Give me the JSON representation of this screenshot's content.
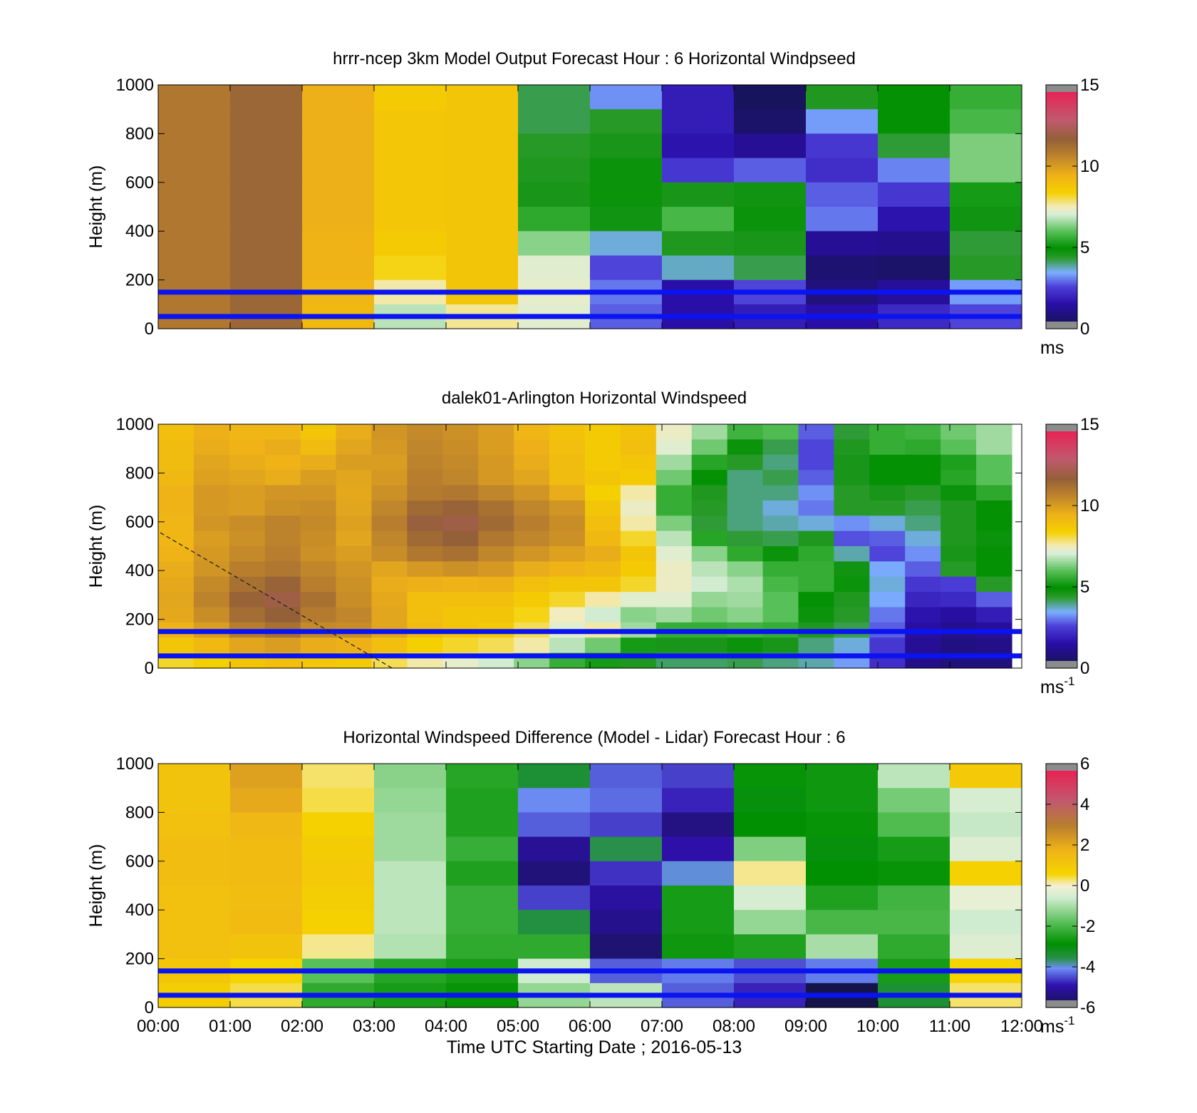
{
  "chart_data": [
    {
      "type": "heatmap",
      "title": "hrrr-ncep 3km Model Output   Forecast Hour : 6 Horizontal Windpseed",
      "ylabel": "Height (m)",
      "xlabel": "",
      "ylim": [
        0,
        1000
      ],
      "yticks": [
        "0",
        "200",
        "400",
        "600",
        "800",
        "1000"
      ],
      "x_columns": 12,
      "x_range_hours": [
        0,
        12
      ],
      "colorbar": {
        "min": 0,
        "max": 15,
        "ticks": [
          "0",
          "5",
          "10",
          "15"
        ],
        "unit": "ms",
        "palette": "speed"
      },
      "reference_lines_m": [
        150,
        50
      ],
      "values": [
        [
          11,
          11.5,
          9.5,
          8.6,
          8.8,
          4.2,
          3.2,
          1.8,
          0.3,
          4.5,
          5,
          5.6
        ],
        [
          11,
          11.5,
          9.5,
          8.7,
          8.8,
          4.2,
          4.4,
          1.8,
          0.5,
          3.3,
          5,
          5.8
        ],
        [
          11,
          11.5,
          9.5,
          8.7,
          8.8,
          4.4,
          4.6,
          1.6,
          1.2,
          2.4,
          4.3,
          6.3
        ],
        [
          11,
          11.5,
          9.5,
          8.7,
          8.8,
          4.5,
          4.8,
          2.4,
          2.8,
          2.2,
          3.1,
          6.3
        ],
        [
          11,
          11.5,
          9.5,
          8.7,
          8.8,
          4.6,
          4.8,
          4.6,
          4.7,
          2.8,
          2.4,
          5.2
        ],
        [
          11,
          11.5,
          9.5,
          8.7,
          8.8,
          5.5,
          4.7,
          5.8,
          4.8,
          3,
          1.6,
          4.7
        ],
        [
          11,
          11.5,
          9.4,
          8.6,
          8.8,
          6.4,
          3.6,
          4.5,
          4.6,
          1.2,
          1.1,
          4.3
        ],
        [
          11,
          11.5,
          9.4,
          8.3,
          8.8,
          7.2,
          2.6,
          3.7,
          4.2,
          0.6,
          0.5,
          4.4
        ],
        [
          11,
          11.5,
          9.3,
          7.6,
          8.8,
          7.3,
          3,
          1.5,
          2.6,
          0.8,
          1.3,
          3.3
        ],
        [
          11,
          11.5,
          9.2,
          6.8,
          7.7,
          7.2,
          2.8,
          1.5,
          1.8,
          1.5,
          2.1,
          2.6
        ]
      ]
    },
    {
      "type": "heatmap",
      "title": "dalek01-Arlington  Horizontal Windspeed",
      "ylabel": "Height (m)",
      "xlabel": "",
      "ylim": [
        0,
        1000
      ],
      "yticks": [
        "0",
        "200",
        "400",
        "600",
        "800",
        "1000"
      ],
      "x_columns": 24,
      "x_range_hours": [
        0,
        12
      ],
      "colorbar": {
        "min": 0,
        "max": 15,
        "ticks": [
          "0",
          "5",
          "10",
          "15"
        ],
        "unit": "ms-1",
        "palette": "speed"
      },
      "reference_lines_m": [
        150,
        50
      ],
      "values": [
        [
          9,
          9.5,
          9.3,
          9.3,
          8.8,
          9.6,
          10.2,
          10.5,
          10.3,
          10,
          9.3,
          8.9,
          8.6,
          8.9,
          7.4,
          6.6,
          5.7,
          5.9,
          2.8,
          4.3,
          5.6,
          5.7,
          6.2,
          6.6
        ],
        [
          9.1,
          9.6,
          9.4,
          9.6,
          9.1,
          9.8,
          10.1,
          10.6,
          10.4,
          10,
          9.5,
          9,
          8.6,
          9,
          7.2,
          6.2,
          4.8,
          4.2,
          2.6,
          4.5,
          5.6,
          5.5,
          6,
          6.6
        ],
        [
          9.1,
          9.8,
          9.6,
          9.4,
          9.6,
          10,
          10,
          10.7,
          10.5,
          10.1,
          9.6,
          9.1,
          8.6,
          8.8,
          6.6,
          5.4,
          4.4,
          4,
          2.6,
          4.6,
          5,
          5,
          5.3,
          6
        ],
        [
          9.2,
          9.9,
          9.8,
          9.6,
          10,
          9.8,
          10.1,
          10.8,
          10.6,
          10.1,
          9.8,
          9.1,
          8.8,
          8.6,
          6.2,
          5,
          4,
          4.2,
          2.8,
          4.6,
          5,
          5,
          5.4,
          6
        ],
        [
          9.4,
          10.1,
          10,
          10.2,
          10.2,
          9.7,
          10.3,
          10.9,
          11,
          10.6,
          10.2,
          9.6,
          8.4,
          7.6,
          5.6,
          4.5,
          4,
          4,
          3.2,
          4.4,
          4.6,
          4.4,
          4.8,
          5.5
        ],
        [
          9.4,
          10.1,
          10,
          10.3,
          10.4,
          9.8,
          10.6,
          11.4,
          11.6,
          11.2,
          10.6,
          10.2,
          8.8,
          7.4,
          5.6,
          4.4,
          4,
          3.6,
          3,
          4.4,
          4.4,
          4.2,
          4.5,
          5
        ],
        [
          9.3,
          10.2,
          10.4,
          10.7,
          10.5,
          9.9,
          10.8,
          11.8,
          12,
          11.4,
          10.8,
          10.4,
          9,
          7.6,
          6.3,
          4.3,
          4,
          3.8,
          3.6,
          3.2,
          3.6,
          4,
          4.5,
          5
        ],
        [
          9.3,
          10,
          10.3,
          10.7,
          10.4,
          9.8,
          10.6,
          11.4,
          11.7,
          11,
          10.6,
          10.3,
          9.2,
          8.2,
          6.8,
          5.4,
          4.3,
          4.2,
          4.5,
          2.7,
          2.8,
          3.6,
          4.5,
          4.8
        ],
        [
          9.4,
          10.1,
          10.5,
          10.8,
          10.3,
          10,
          10.4,
          11,
          11.2,
          10.6,
          10.2,
          9.9,
          9.6,
          8.8,
          7.2,
          6.4,
          5.5,
          4.8,
          5.5,
          3.8,
          2.6,
          3.2,
          4.6,
          5
        ],
        [
          9.6,
          10.2,
          10.8,
          11,
          10.6,
          10.2,
          9.8,
          10.1,
          10.3,
          10.1,
          9.6,
          9.4,
          9.2,
          8.6,
          7.4,
          6.8,
          6.4,
          5.6,
          5.6,
          4.7,
          3.4,
          2.8,
          4.4,
          5
        ],
        [
          9.7,
          10.5,
          11.2,
          11.6,
          10.8,
          10.3,
          9.6,
          9.5,
          9.4,
          9.5,
          9,
          8.8,
          8.8,
          8.2,
          7.4,
          7,
          6.7,
          5.8,
          5.6,
          4.8,
          3.6,
          2.4,
          2.5,
          4.4
        ],
        [
          9.8,
          10.7,
          11.6,
          12,
          11.2,
          10.4,
          9.7,
          9,
          9,
          9,
          8.6,
          8.2,
          7.6,
          7.2,
          7.2,
          6.5,
          6.6,
          6,
          5,
          4.5,
          3.4,
          2,
          2.1,
          2.8
        ],
        [
          9.7,
          10.4,
          11.3,
          11.7,
          10.9,
          10.6,
          9.8,
          9,
          8.8,
          8.8,
          8.3,
          7.5,
          7,
          6.4,
          6.6,
          6.2,
          6.4,
          6,
          4.8,
          4.4,
          3,
          1.6,
          1.4,
          1.8
        ],
        [
          9.4,
          10,
          10.8,
          11.2,
          10.5,
          10.4,
          9.8,
          9.1,
          8.8,
          8.6,
          8,
          7.2,
          7.6,
          6.6,
          5.6,
          5.6,
          5.7,
          5.6,
          4.5,
          4.2,
          2.8,
          1.4,
          1.1,
          1.3
        ],
        [
          8.8,
          9.2,
          9.8,
          10,
          9.6,
          9.5,
          9,
          8.4,
          8.2,
          8,
          7.6,
          6.8,
          6.2,
          5.2,
          4.6,
          4.6,
          4.8,
          4.6,
          4,
          3.6,
          2.4,
          1.2,
          0.9,
          1
        ],
        [
          8.2,
          8.4,
          8.8,
          9,
          8.7,
          8.6,
          8,
          7.6,
          7.3,
          7,
          6.4,
          5.6,
          5.2,
          4.5,
          4.1,
          4.1,
          4.2,
          4,
          3.8,
          3.3,
          2.2,
          1,
          0.8,
          0.8
        ]
      ]
    },
    {
      "type": "heatmap",
      "title": "Horizontal Windspeed Difference (Model - Lidar) Forecast Hour : 6",
      "ylabel": "Height (m)",
      "xlabel": "Time UTC  Starting Date ; 2016-05-13",
      "ylim": [
        0,
        1000
      ],
      "yticks": [
        "0",
        "200",
        "400",
        "600",
        "800",
        "1000"
      ],
      "xticks": [
        "00:00",
        "01:00",
        "02:00",
        "03:00",
        "04:00",
        "05:00",
        "06:00",
        "07:00",
        "08:00",
        "09:00",
        "10:00",
        "11:00",
        "12:00"
      ],
      "x_columns": 12,
      "x_range_hours": [
        0,
        12
      ],
      "colorbar": {
        "min": -6,
        "max": 6,
        "ticks": [
          "-6",
          "-4",
          "-2",
          "0",
          "2",
          "4",
          "6"
        ],
        "unit": "ms-1",
        "palette": "diff"
      },
      "reference_lines_m": [
        150,
        50
      ],
      "values": [
        [
          1.2,
          2.2,
          0.3,
          -1.3,
          -2.4,
          -3.4,
          -4.4,
          -4.6,
          -2.8,
          -2.7,
          -0.8,
          1
        ],
        [
          1.2,
          2,
          0.4,
          -1.2,
          -2.5,
          -4.1,
          -4.3,
          -4.8,
          -3,
          -2.7,
          -1.5,
          -0.5
        ],
        [
          1.3,
          1.6,
          0.7,
          -1.1,
          -2.5,
          -4.4,
          -4.6,
          -5.4,
          -2.9,
          -2.8,
          -1.9,
          -0.7
        ],
        [
          1.4,
          1.5,
          0.9,
          -1.1,
          -2.2,
          -5.2,
          -3.6,
          -5,
          -1.4,
          -3,
          -2.6,
          -0.4
        ],
        [
          1.4,
          1.5,
          1,
          -0.8,
          -2.5,
          -5.5,
          -4.7,
          -4,
          0.2,
          -2.9,
          -2.8,
          0.7
        ],
        [
          1.3,
          1.4,
          0.8,
          -0.8,
          -2.2,
          -4.6,
          -5.1,
          -2.6,
          -0.5,
          -2.5,
          -2.1,
          -0.2
        ],
        [
          1.3,
          1.5,
          0.7,
          -0.8,
          -2.2,
          -3.5,
          -5.3,
          -2.6,
          -1.2,
          -2,
          -2,
          -0.6
        ],
        [
          1.3,
          1.2,
          0.2,
          -0.9,
          -2.3,
          -2.3,
          -5.6,
          -2.7,
          -2.5,
          -1,
          -2.3,
          -0.4
        ],
        [
          1.1,
          0.6,
          -1.8,
          -2.4,
          -2.6,
          -0.6,
          -4.4,
          -4.2,
          -4.5,
          -4.2,
          -2.6,
          0.6
        ],
        [
          0.8,
          0.4,
          -2.3,
          -2.6,
          -2.8,
          -1.2,
          -0.8,
          -4.4,
          -4.8,
          -6,
          -3.4,
          0.3
        ]
      ]
    }
  ]
}
